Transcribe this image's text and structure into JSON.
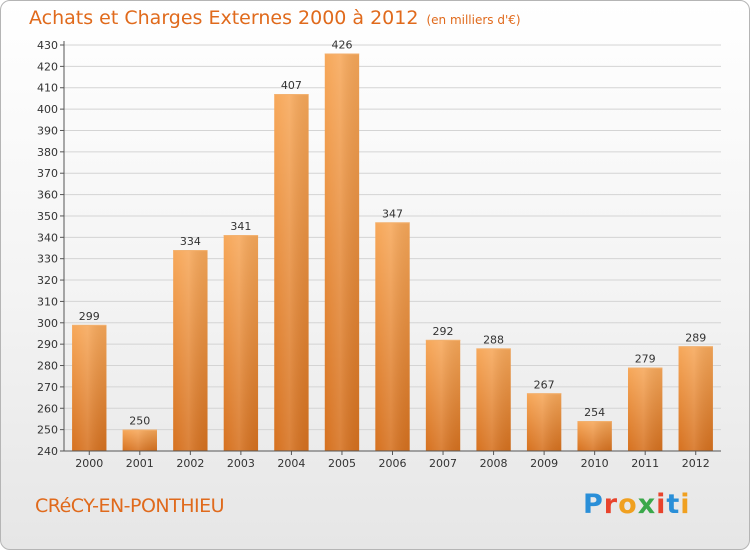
{
  "header": {
    "title": "Achats et Charges Externes 2000 à 2012",
    "subtitle": "(en milliers d'€)"
  },
  "footer": {
    "location": "CRéCY-EN-PONTHIEU",
    "logo_text": "Proxiti"
  },
  "colors": {
    "bar_top": "#f7a85a",
    "bar_bottom": "#d6711f",
    "title": "#e06a1c"
  },
  "chart_data": {
    "type": "bar",
    "categories": [
      "2000",
      "2001",
      "2002",
      "2003",
      "2004",
      "2005",
      "2006",
      "2007",
      "2008",
      "2009",
      "2010",
      "2011",
      "2012"
    ],
    "values": [
      299,
      250,
      334,
      341,
      407,
      426,
      347,
      292,
      288,
      267,
      254,
      279,
      289
    ],
    "ylim": [
      240,
      430
    ],
    "yticks": [
      240,
      250,
      260,
      270,
      280,
      290,
      300,
      310,
      320,
      330,
      340,
      350,
      360,
      370,
      380,
      390,
      400,
      410,
      420,
      430
    ],
    "grid": true,
    "data_labels": true
  }
}
